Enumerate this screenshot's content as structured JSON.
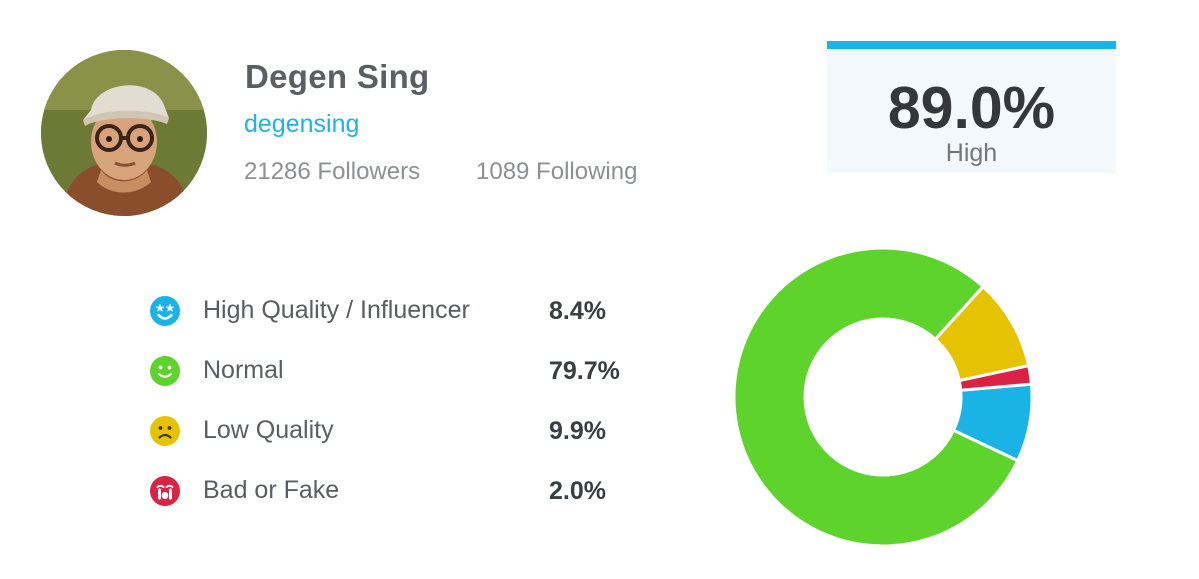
{
  "profile": {
    "name": "Degen Sing",
    "handle": "degensing",
    "followers_label": "21286 Followers",
    "following_label": "1089 Following"
  },
  "score": {
    "value": "89.0%",
    "label": "High",
    "accent_color": "#1ab3e6"
  },
  "chart_data": {
    "type": "pie",
    "variant": "donut",
    "categories": [
      "High Quality / Influencer",
      "Normal",
      "Low Quality",
      "Bad or Fake"
    ],
    "values": [
      8.4,
      79.7,
      9.9,
      2.0
    ],
    "value_labels": [
      "8.4%",
      "79.7%",
      "9.9%",
      "2.0%"
    ],
    "colors": [
      "#1ab3e6",
      "#5dd32b",
      "#e6c300",
      "#d92244"
    ],
    "icons": [
      "star-eyes-face-icon",
      "smile-face-icon",
      "sad-face-icon",
      "crying-face-icon"
    ],
    "start_angle_deg": 90,
    "direction": "counterclockwise",
    "legend_position": "left",
    "title": ""
  }
}
